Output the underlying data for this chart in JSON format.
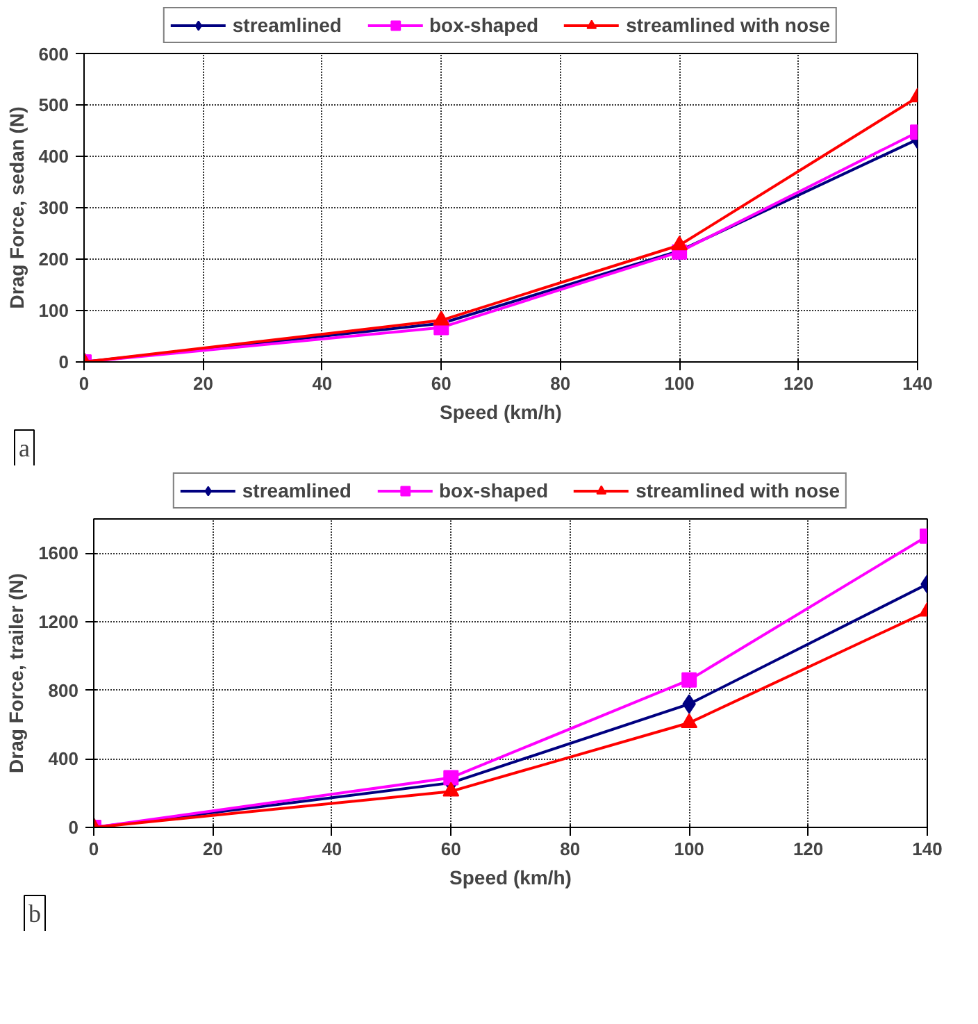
{
  "chart_data": [
    {
      "type": "line",
      "xlabel": "Speed (km/h)",
      "ylabel": "Drag Force, sedan (N)",
      "x": [
        0,
        60,
        100,
        140
      ],
      "xlim": [
        0,
        140
      ],
      "xticks": [
        0,
        20,
        40,
        60,
        80,
        100,
        120,
        140
      ],
      "ylim": [
        0,
        600
      ],
      "yticks": [
        0,
        100,
        200,
        300,
        400,
        500,
        600
      ],
      "grid": true,
      "legend": "top",
      "line_style": "solid",
      "annotations": [
        "a"
      ],
      "series": [
        {
          "name": "streamlined",
          "color": "#000080",
          "marker": "diamond",
          "values": [
            0,
            75,
            216,
            433
          ]
        },
        {
          "name": "box-shaped",
          "color": "#ff00ff",
          "marker": "square",
          "values": [
            0,
            67,
            214,
            447
          ]
        },
        {
          "name": "streamlined with nose",
          "color": "#ff0000",
          "marker": "triangle",
          "values": [
            0,
            81,
            227,
            515
          ]
        }
      ]
    },
    {
      "type": "line",
      "xlabel": "Speed (km/h)",
      "ylabel": "Drag Force, trailer (N)",
      "x": [
        0,
        60,
        100,
        140
      ],
      "xlim": [
        0,
        140
      ],
      "xticks": [
        0,
        20,
        40,
        60,
        80,
        100,
        120,
        140
      ],
      "ylim": [
        0,
        1800
      ],
      "yticks": [
        0,
        400,
        800,
        1200,
        1600
      ],
      "grid": true,
      "legend": "top",
      "line_style": "solid",
      "annotations": [
        "b"
      ],
      "series": [
        {
          "name": "streamlined",
          "color": "#000080",
          "marker": "diamond",
          "values": [
            0,
            260,
            720,
            1420
          ]
        },
        {
          "name": "box-shaped",
          "color": "#ff00ff",
          "marker": "square",
          "values": [
            0,
            290,
            860,
            1700
          ]
        },
        {
          "name": "streamlined with nose",
          "color": "#ff0000",
          "marker": "triangle",
          "values": [
            0,
            210,
            610,
            1260
          ]
        }
      ]
    }
  ]
}
